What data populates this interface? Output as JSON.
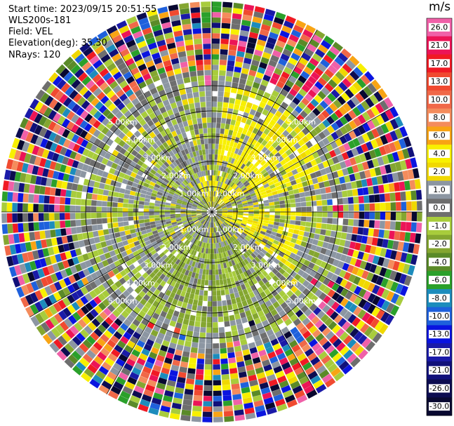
{
  "header": {
    "start_time": "Start time: 2023/09/15 20:51:55",
    "instrument": "WLS200s-181",
    "field": "Field: VEL",
    "elevation": "Elevation(deg): 35.30",
    "nrays": "NRays: 120"
  },
  "chart_data": {
    "type": "heatmap",
    "subtype": "radar-ppi",
    "nrays": 120,
    "range_rings_km": [
      1.0,
      2.0,
      3.0,
      4.0,
      5.0
    ],
    "ring_labels": [
      "1.00km",
      "2.00km",
      "3.00km",
      "4.00km",
      "5.00km"
    ],
    "max_range_km": 5.0,
    "colorbar": {
      "title": "m/s",
      "bins": [
        {
          "label": "26.0",
          "color": "#f060a8"
        },
        {
          "label": "21.0",
          "color": "#ec1457"
        },
        {
          "label": "17.0",
          "color": "#f01a24"
        },
        {
          "label": "13.0",
          "color": "#f04a30"
        },
        {
          "label": "10.0",
          "color": "#f06848"
        },
        {
          "label": "8.0",
          "color": "#f48c5c"
        },
        {
          "label": "6.0",
          "color": "#f8a414"
        },
        {
          "label": "4.0",
          "color": "#f8f000"
        },
        {
          "label": "2.0",
          "color": "#f0d800"
        },
        {
          "label": "1.0",
          "color": "#8c96a2"
        },
        {
          "label": "0.0",
          "color": "#6e6e6e"
        },
        {
          "label": "-1.0",
          "color": "#a8cc3c"
        },
        {
          "label": "-2.0",
          "color": "#84a630"
        },
        {
          "label": "-4.0",
          "color": "#5a8a28"
        },
        {
          "label": "-6.0",
          "color": "#2aa02a"
        },
        {
          "label": "-8.0",
          "color": "#1c8cbc"
        },
        {
          "label": "-10.0",
          "color": "#1e60dc"
        },
        {
          "label": "-13.0",
          "color": "#0a14e0"
        },
        {
          "label": "-17.0",
          "color": "#1a1aa8"
        },
        {
          "label": "-21.0",
          "color": "#10107a"
        },
        {
          "label": "-26.0",
          "color": "#0c0c50"
        },
        {
          "label": "-30.0",
          "color": "#080830"
        }
      ]
    },
    "regions_ms": {
      "near_field_mean": -1.0,
      "northeast_core": 3.0,
      "east_core": 3.0,
      "far_field": "noise"
    }
  }
}
